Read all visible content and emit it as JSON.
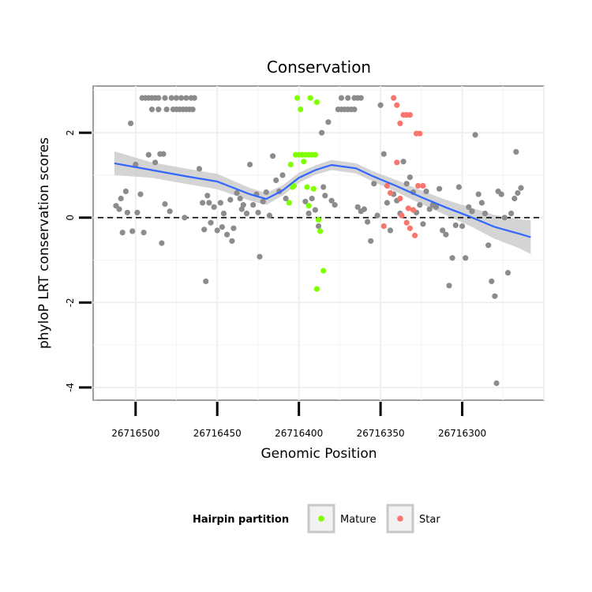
{
  "chart_data": {
    "type": "scatter",
    "title": "Conservation",
    "xlabel": "Genomic Position",
    "ylabel": "phyloP LRT conservation scores",
    "x_reversed": true,
    "xlim": [
      26716250,
      26716526
    ],
    "ylim": [
      -4.3,
      3.1
    ],
    "x_ticks": [
      26716500,
      26716450,
      26716400,
      26716350,
      26716300
    ],
    "x_tick_labels": [
      "26716500",
      "26716450",
      "26716400",
      "26716350",
      "26716300"
    ],
    "y_ticks": [
      2,
      0,
      -2,
      -4
    ],
    "y_tick_labels": [
      "2",
      "0",
      "-2",
      "-4"
    ],
    "reference_line": {
      "y": 0,
      "style": "dashed"
    },
    "legend": {
      "title": "Hairpin partition",
      "entries": [
        {
          "label": "Mature",
          "color": "#7FFF00"
        },
        {
          "label": "Star",
          "color": "#F8766D"
        }
      ],
      "position": "bottom"
    },
    "colors": {
      "Other": "#8c8c8c",
      "Mature": "#7FFF00",
      "Star": "#F8766D",
      "smooth": "#3366FF",
      "ribbon": "#cccccc"
    },
    "smooth": {
      "x": [
        26716513,
        26716490,
        26716470,
        26716450,
        26716430,
        26716420,
        26716410,
        26716400,
        26716390,
        26716380,
        26716365,
        26716355,
        26716340,
        26716325,
        26716310,
        26716295,
        26716280,
        26716265,
        26716258
      ],
      "y": [
        1.28,
        1.12,
        0.98,
        0.85,
        0.55,
        0.44,
        0.64,
        0.94,
        1.12,
        1.24,
        1.16,
        0.98,
        0.74,
        0.48,
        0.24,
        0.02,
        -0.22,
        -0.38,
        -0.46
      ],
      "lower": [
        1.0,
        0.94,
        0.8,
        0.67,
        0.4,
        0.3,
        0.52,
        0.82,
        1.01,
        1.12,
        1.04,
        0.86,
        0.6,
        0.32,
        0.06,
        -0.2,
        -0.5,
        -0.72,
        -0.86
      ],
      "upper": [
        1.56,
        1.3,
        1.16,
        1.03,
        0.7,
        0.58,
        0.76,
        1.06,
        1.23,
        1.36,
        1.28,
        1.1,
        0.88,
        0.64,
        0.42,
        0.24,
        0.06,
        -0.04,
        -0.06
      ]
    },
    "series": [
      {
        "name": "Other",
        "points": [
          [
            26716512,
            0.28
          ],
          [
            26716510,
            0.2
          ],
          [
            26716509,
            0.45
          ],
          [
            26716508,
            -0.35
          ],
          [
            26716506,
            0.62
          ],
          [
            26716505,
            0.12
          ],
          [
            26716503,
            2.22
          ],
          [
            26716502,
            -0.32
          ],
          [
            26716500,
            1.25
          ],
          [
            26716499,
            0.12
          ],
          [
            26716497,
            0.55
          ],
          [
            26716495,
            -0.35
          ],
          [
            26716492,
            1.48
          ],
          [
            26716490,
            2.55
          ],
          [
            26716488,
            1.3
          ],
          [
            26716486,
            2.55
          ],
          [
            26716485,
            1.5
          ],
          [
            26716484,
            -0.6
          ],
          [
            26716483,
            1.5
          ],
          [
            26716482,
            0.32
          ],
          [
            26716481,
            2.55
          ],
          [
            26716479,
            0.15
          ],
          [
            26716477,
            2.55
          ],
          [
            26716475,
            2.55
          ],
          [
            26716473,
            2.55
          ],
          [
            26716471,
            2.55
          ],
          [
            26716469,
            2.55
          ],
          [
            26716467,
            2.55
          ],
          [
            26716465,
            2.55
          ],
          [
            26716496,
            2.82
          ],
          [
            26716494,
            2.82
          ],
          [
            26716492,
            2.82
          ],
          [
            26716490,
            2.82
          ],
          [
            26716488,
            2.82
          ],
          [
            26716486,
            2.82
          ],
          [
            26716482,
            2.82
          ],
          [
            26716478,
            2.82
          ],
          [
            26716475,
            2.82
          ],
          [
            26716472,
            2.82
          ],
          [
            26716469,
            2.82
          ],
          [
            26716466,
            2.82
          ],
          [
            26716464,
            2.82
          ],
          [
            26716461,
            1.15
          ],
          [
            26716459,
            0.35
          ],
          [
            26716458,
            -0.28
          ],
          [
            26716457,
            -1.5
          ],
          [
            26716456,
            0.52
          ],
          [
            26716455,
            0.35
          ],
          [
            26716454,
            -0.12
          ],
          [
            26716452,
            0.25
          ],
          [
            26716450,
            -0.3
          ],
          [
            26716448,
            0.35
          ],
          [
            26716447,
            -0.22
          ],
          [
            26716446,
            0.1
          ],
          [
            26716444,
            -0.4
          ],
          [
            26716442,
            0.42
          ],
          [
            26716441,
            -0.55
          ],
          [
            26716440,
            -0.25
          ],
          [
            26716438,
            0.58
          ],
          [
            26716436,
            0.45
          ],
          [
            26716435,
            0.2
          ],
          [
            26716434,
            0.3
          ],
          [
            26716432,
            0.1
          ],
          [
            26716430,
            1.25
          ],
          [
            26716428,
            0.3
          ],
          [
            26716426,
            0.55
          ],
          [
            26716425,
            0.12
          ],
          [
            26716424,
            -0.92
          ],
          [
            26716422,
            0.38
          ],
          [
            26716420,
            0.6
          ],
          [
            26716418,
            0.05
          ],
          [
            26716416,
            1.45
          ],
          [
            26716414,
            0.88
          ],
          [
            26716412,
            0.62
          ],
          [
            26716410,
            1.0
          ],
          [
            26716408,
            0.45
          ],
          [
            26716396,
            0.38
          ],
          [
            26716394,
            0.1
          ],
          [
            26716392,
            0.45
          ],
          [
            26716390,
            0.18
          ],
          [
            26716388,
            -0.2
          ],
          [
            26716386,
            2.0
          ],
          [
            26716385,
            0.72
          ],
          [
            26716384,
            0.52
          ],
          [
            26716382,
            2.25
          ],
          [
            26716380,
            0.4
          ],
          [
            26716378,
            0.3
          ],
          [
            26716376,
            2.55
          ],
          [
            26716374,
            2.55
          ],
          [
            26716372,
            2.55
          ],
          [
            26716370,
            2.55
          ],
          [
            26716368,
            2.55
          ],
          [
            26716366,
            2.55
          ],
          [
            26716374,
            2.82
          ],
          [
            26716370,
            2.82
          ],
          [
            26716366,
            2.82
          ],
          [
            26716364,
            2.82
          ],
          [
            26716362,
            2.82
          ],
          [
            26716364,
            0.25
          ],
          [
            26716362,
            0.15
          ],
          [
            26716360,
            0.2
          ],
          [
            26716358,
            -0.1
          ],
          [
            26716356,
            -0.55
          ],
          [
            26716354,
            0.8
          ],
          [
            26716352,
            0.05
          ],
          [
            26716350,
            2.65
          ],
          [
            26716348,
            1.5
          ],
          [
            26716346,
            0.35
          ],
          [
            26716344,
            -0.3
          ],
          [
            26716342,
            0.55
          ],
          [
            26716340,
            0.4
          ],
          [
            26716338,
            0.1
          ],
          [
            26716336,
            1.32
          ],
          [
            26716334,
            0.8
          ],
          [
            26716332,
            0.95
          ],
          [
            26716330,
            0.6
          ],
          [
            26716328,
            0.12
          ],
          [
            26716326,
            0.3
          ],
          [
            26716324,
            -0.15
          ],
          [
            26716322,
            0.62
          ],
          [
            26716320,
            0.2
          ],
          [
            26716318,
            0.3
          ],
          [
            26716316,
            0.25
          ],
          [
            26716314,
            0.68
          ],
          [
            26716312,
            -0.3
          ],
          [
            26716310,
            -0.4
          ],
          [
            26716308,
            -1.6
          ],
          [
            26716306,
            -0.95
          ],
          [
            26716304,
            -0.18
          ],
          [
            26716302,
            0.72
          ],
          [
            26716300,
            -0.2
          ],
          [
            26716298,
            -0.95
          ],
          [
            26716296,
            0.25
          ],
          [
            26716294,
            0.15
          ],
          [
            26716292,
            1.95
          ],
          [
            26716290,
            0.55
          ],
          [
            26716288,
            0.35
          ],
          [
            26716286,
            0.1
          ],
          [
            26716284,
            -0.65
          ],
          [
            26716282,
            -1.5
          ],
          [
            26716280,
            -1.85
          ],
          [
            26716278,
            0.62
          ],
          [
            26716276,
            0.55
          ],
          [
            26716274,
            0.0
          ],
          [
            26716272,
            -1.3
          ],
          [
            26716270,
            0.1
          ],
          [
            26716268,
            0.45
          ],
          [
            26716266,
            0.58
          ],
          [
            26716264,
            0.7
          ],
          [
            26716267,
            1.55
          ],
          [
            26716279,
            -3.9
          ],
          [
            26716470,
            0.0
          ]
        ]
      },
      {
        "name": "Mature",
        "points": [
          [
            26716402,
            1.48
          ],
          [
            26716400,
            1.48
          ],
          [
            26716398,
            1.48
          ],
          [
            26716396,
            1.48
          ],
          [
            26716394,
            1.48
          ],
          [
            26716392,
            1.48
          ],
          [
            26716390,
            1.48
          ],
          [
            26716405,
            1.25
          ],
          [
            26716403,
            0.75
          ],
          [
            26716401,
            2.82
          ],
          [
            26716399,
            2.55
          ],
          [
            26716397,
            1.32
          ],
          [
            26716395,
            0.72
          ],
          [
            26716393,
            2.82
          ],
          [
            26716391,
            0.68
          ],
          [
            26716389,
            2.72
          ],
          [
            26716388,
            -0.05
          ],
          [
            26716387,
            -0.32
          ],
          [
            26716385,
            -1.25
          ],
          [
            26716389,
            -1.68
          ],
          [
            26716406,
            0.35
          ],
          [
            26716404,
            0.72
          ],
          [
            26716394,
            0.28
          ]
        ]
      },
      {
        "name": "Star",
        "points": [
          [
            26716342,
            2.82
          ],
          [
            26716340,
            2.65
          ],
          [
            26716338,
            2.22
          ],
          [
            26716336,
            2.42
          ],
          [
            26716334,
            2.42
          ],
          [
            26716332,
            2.42
          ],
          [
            26716328,
            1.98
          ],
          [
            26716326,
            1.98
          ],
          [
            26716340,
            1.3
          ],
          [
            26716344,
            0.58
          ],
          [
            26716346,
            0.75
          ],
          [
            26716338,
            0.45
          ],
          [
            26716333,
            0.22
          ],
          [
            26716330,
            0.18
          ],
          [
            26716334,
            -0.12
          ],
          [
            26716332,
            -0.25
          ],
          [
            26716337,
            0.05
          ],
          [
            26716324,
            0.75
          ],
          [
            26716327,
            0.75
          ],
          [
            26716348,
            -0.2
          ],
          [
            26716329,
            -0.42
          ]
        ]
      }
    ]
  }
}
